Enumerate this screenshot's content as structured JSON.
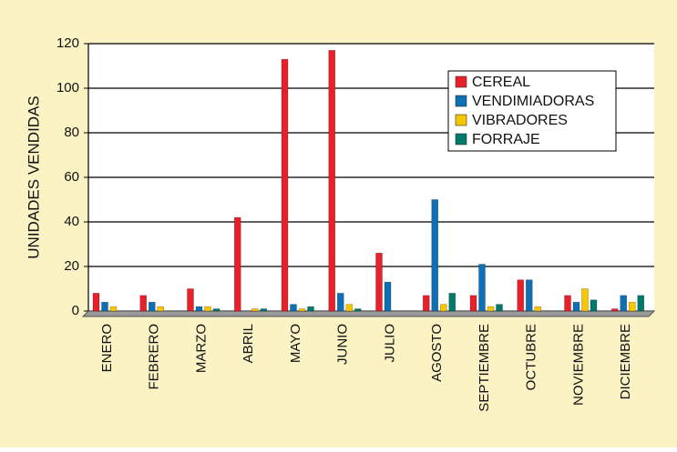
{
  "chart_data": {
    "type": "bar",
    "ylabel": "UNIDADES VENDIDAS",
    "categories": [
      "ENERO",
      "FEBRERO",
      "MARZO",
      "ABRIL",
      "MAYO",
      "JUNIO",
      "JULIO",
      "AGOSTO",
      "SEPTIEMBRE",
      "OCTUBRE",
      "NOVIEMBRE",
      "DICIEMBRE"
    ],
    "series": [
      {
        "name": "CEREAL",
        "color": "#e8202a",
        "values": [
          8,
          7,
          10,
          42,
          113,
          117,
          26,
          7,
          7,
          14,
          7,
          1
        ]
      },
      {
        "name": "VENDIMIADORAS",
        "color": "#0e6fb5",
        "values": [
          4,
          4,
          2,
          0,
          3,
          8,
          13,
          50,
          21,
          14,
          4,
          7
        ]
      },
      {
        "name": "VIBRADORES",
        "color": "#f7c600",
        "values": [
          2,
          2,
          2,
          1,
          1,
          3,
          0,
          3,
          2,
          2,
          10,
          4
        ]
      },
      {
        "name": "FORRAJE",
        "color": "#00796b",
        "values": [
          0,
          0,
          1,
          1,
          2,
          1,
          0,
          8,
          3,
          0,
          5,
          7
        ]
      }
    ],
    "ylim": [
      0,
      120
    ],
    "yticks": [
      0,
      20,
      40,
      60,
      80,
      100,
      120
    ],
    "grid": true,
    "legend": "upper right"
  }
}
